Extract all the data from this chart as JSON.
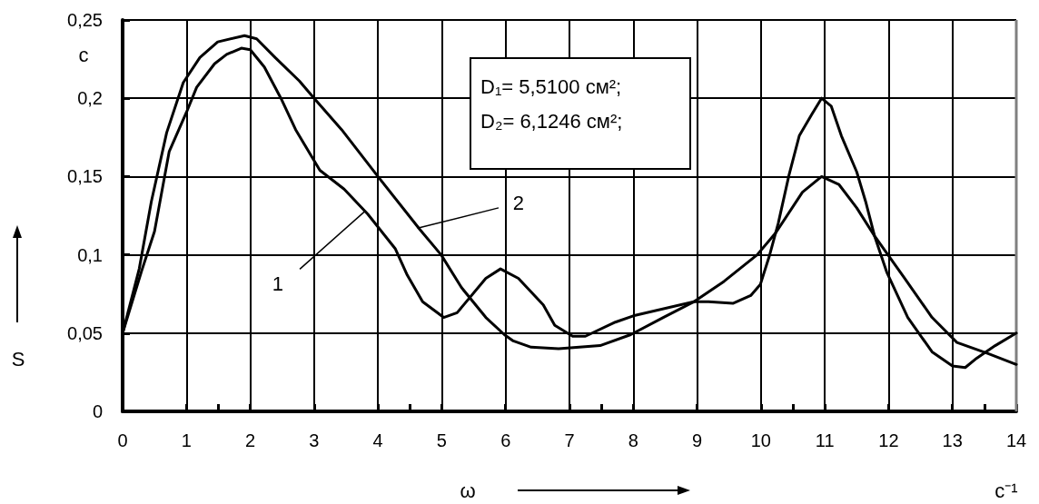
{
  "chart_data": {
    "type": "line",
    "xlabel": "ω",
    "ylabel": "S",
    "xlim": [
      0,
      14
    ],
    "xticks": [
      0,
      1,
      2,
      3,
      4,
      5,
      6,
      7,
      8,
      9,
      10,
      11,
      12,
      13,
      14
    ],
    "ylim": [
      0,
      0.25
    ],
    "yticks": [
      {
        "value": 0,
        "label": "0"
      },
      {
        "value": 0.05,
        "label": "0,05"
      },
      {
        "value": 0.1,
        "label": "0,1"
      },
      {
        "value": 0.15,
        "label": "0,15"
      },
      {
        "value": 0.2,
        "label": "0,2"
      },
      {
        "value": 0.25,
        "label": "0,25"
      }
    ],
    "grid": true,
    "marker": "none",
    "line_style": "solid",
    "series": [
      {
        "color": "#000000",
        "x": [
          0,
          0.3,
          0.5,
          0.73,
          1,
          1.16,
          1.44,
          1.63,
          1.86,
          2,
          2.22,
          2.48,
          2.71,
          3.09,
          3.47,
          3.84,
          4.27,
          4.46,
          4.7,
          5.03,
          5.24,
          5.69,
          5.92,
          6.2,
          6.59,
          6.77,
          7.05,
          7.25,
          7.72,
          8,
          8.95,
          9.18,
          9.56,
          9.84,
          9.99,
          10.13,
          10.27,
          10.44,
          10.6,
          10.8,
          10.95,
          11.1,
          11.26,
          11.5,
          11.64,
          11.78,
          11.97,
          12.3,
          12.68,
          13,
          13.2,
          13.38,
          13.67,
          14
        ],
        "values": [
          0.05,
          0.09,
          0.115,
          0.166,
          0.191,
          0.207,
          0.222,
          0.228,
          0.232,
          0.231,
          0.22,
          0.2,
          0.18,
          0.154,
          0.142,
          0.126,
          0.104,
          0.087,
          0.07,
          0.06,
          0.063,
          0.085,
          0.091,
          0.085,
          0.068,
          0.055,
          0.048,
          0.048,
          0.057,
          0.061,
          0.07,
          0.07,
          0.069,
          0.074,
          0.081,
          0.099,
          0.12,
          0.151,
          0.176,
          0.19,
          0.2,
          0.195,
          0.176,
          0.153,
          0.134,
          0.112,
          0.089,
          0.06,
          0.038,
          0.029,
          0.028,
          0.034,
          0.042,
          0.05
        ]
      },
      {
        "color": "#000000",
        "x": [
          0,
          0.26,
          0.45,
          0.69,
          0.95,
          1.21,
          1.49,
          1.91,
          2.1,
          2.39,
          2.77,
          3,
          3.43,
          4,
          4.66,
          4.99,
          5.31,
          5.69,
          5.98,
          6.12,
          6.4,
          6.83,
          7.48,
          7.96,
          8.47,
          8.95,
          9.42,
          9.94,
          10.23,
          10.65,
          10.95,
          11.22,
          11.5,
          11.78,
          12.25,
          12.68,
          13.07,
          13.55,
          14
        ],
        "values": [
          0.05,
          0.091,
          0.134,
          0.178,
          0.21,
          0.226,
          0.236,
          0.24,
          0.238,
          0.226,
          0.211,
          0.2,
          0.18,
          0.15,
          0.116,
          0.1,
          0.079,
          0.06,
          0.049,
          0.045,
          0.041,
          0.04,
          0.042,
          0.049,
          0.06,
          0.07,
          0.083,
          0.1,
          0.114,
          0.14,
          0.15,
          0.145,
          0.13,
          0.112,
          0.085,
          0.06,
          0.044,
          0.037,
          0.03
        ]
      }
    ],
    "annotations": [
      {
        "text": "1",
        "x": 3.8,
        "y": 0.128
      },
      {
        "text": "2",
        "x": 4.62,
        "y": 0.117
      },
      "D₁= 5,5100 см²;",
      "D₂= 6,1246 см²;",
      "с",
      "с⁻¹"
    ]
  }
}
